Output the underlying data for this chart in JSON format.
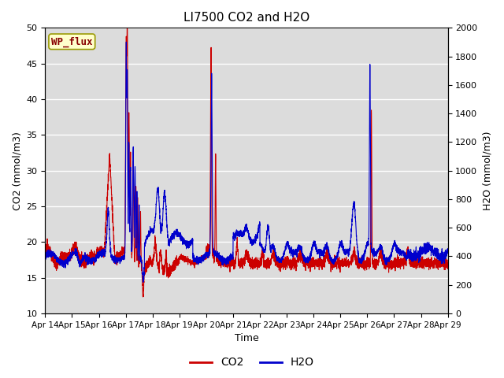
{
  "title": "LI7500 CO2 and H2O",
  "xlabel": "Time",
  "ylabel_left": "CO2 (mmol/m3)",
  "ylabel_right": "H2O (mmol/m3)",
  "legend_label": "WP_flux",
  "co2_label": "CO2",
  "h2o_label": "H2O",
  "co2_color": "#cc0000",
  "h2o_color": "#0000cc",
  "ylim_left": [
    10,
    50
  ],
  "ylim_right": [
    0,
    2000
  ],
  "yticks_left": [
    10,
    15,
    20,
    25,
    30,
    35,
    40,
    45,
    50
  ],
  "yticks_right": [
    0,
    200,
    400,
    600,
    800,
    1000,
    1200,
    1400,
    1600,
    1800,
    2000
  ],
  "xtick_labels": [
    "Apr 14",
    "Apr 15",
    "Apr 16",
    "Apr 17",
    "Apr 18",
    "Apr 19",
    "Apr 20",
    "Apr 21",
    "Apr 22",
    "Apr 23",
    "Apr 24",
    "Apr 25",
    "Apr 26",
    "Apr 27",
    "Apr 28",
    "Apr 29"
  ],
  "bg_color": "#dcdcdc",
  "legend_box_color": "#ffffcc",
  "legend_box_edge": "#999900",
  "legend_text_color": "#880000",
  "fig_width": 6.4,
  "fig_height": 4.8,
  "dpi": 100
}
